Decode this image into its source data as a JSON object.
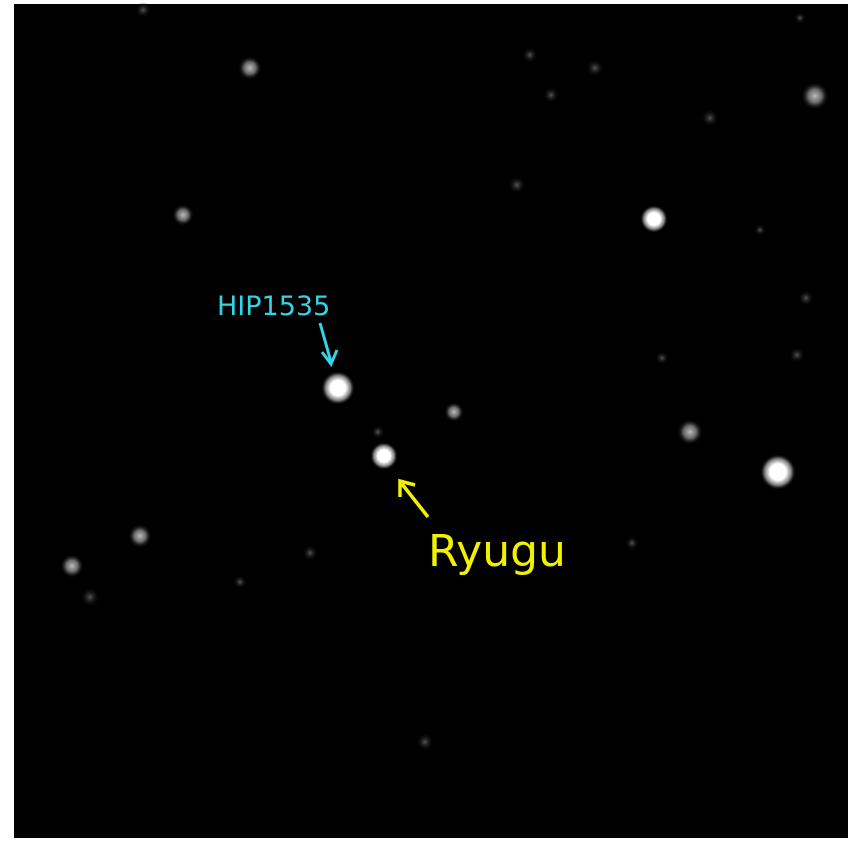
{
  "annotations": [
    {
      "label": "HIP1535"
    },
    {
      "label": "Ryugu"
    }
  ]
}
